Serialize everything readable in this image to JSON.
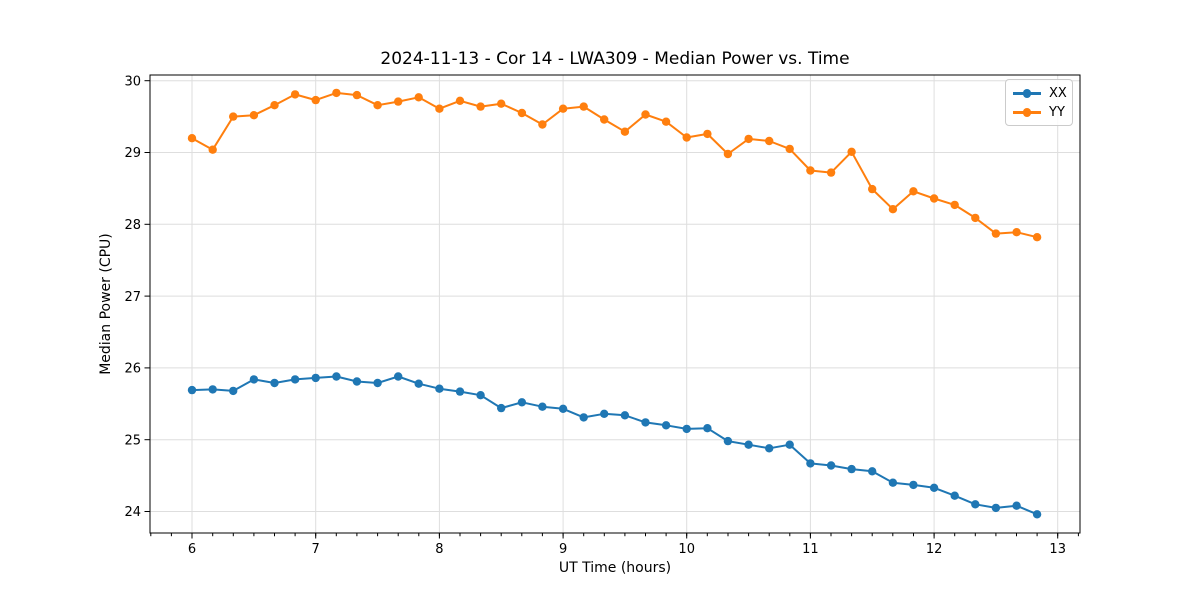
{
  "figure": {
    "title": "2024-11-13 - Cor 14 - LWA309 - Median Power vs. Time"
  },
  "chart_data": {
    "type": "line",
    "title": "2024-11-13 - Cor 14 - LWA309 - Median Power vs. Time",
    "xlabel": "UT Time (hours)",
    "ylabel": "Median Power (CPU)",
    "x": [
      6.0,
      6.167,
      6.333,
      6.5,
      6.667,
      6.833,
      7.0,
      7.167,
      7.333,
      7.5,
      7.667,
      7.833,
      8.0,
      8.167,
      8.333,
      8.5,
      8.667,
      8.833,
      9.0,
      9.167,
      9.333,
      9.5,
      9.667,
      9.833,
      10.0,
      10.167,
      10.333,
      10.5,
      10.667,
      10.833,
      11.0,
      11.167,
      11.333,
      11.5,
      11.667,
      11.833,
      12.0,
      12.167,
      12.333,
      12.5,
      12.667,
      12.833
    ],
    "series": [
      {
        "name": "XX",
        "color": "#1f77b4",
        "marker": "o",
        "values": [
          25.69,
          25.7,
          25.68,
          25.84,
          25.79,
          25.84,
          25.86,
          25.88,
          25.81,
          25.79,
          25.88,
          25.78,
          25.71,
          25.67,
          25.62,
          25.44,
          25.52,
          25.46,
          25.43,
          25.31,
          25.36,
          25.34,
          25.24,
          25.2,
          25.15,
          25.16,
          24.98,
          24.93,
          24.88,
          24.93,
          24.67,
          24.64,
          24.59,
          24.56,
          24.4,
          24.37,
          24.33,
          24.22,
          24.1,
          24.05,
          24.08,
          23.96
        ]
      },
      {
        "name": "YY",
        "color": "#ff7f0e",
        "marker": "o",
        "values": [
          29.2,
          29.04,
          29.5,
          29.52,
          29.66,
          29.81,
          29.73,
          29.83,
          29.8,
          29.66,
          29.71,
          29.77,
          29.61,
          29.72,
          29.64,
          29.68,
          29.55,
          29.39,
          29.61,
          29.64,
          29.46,
          29.29,
          29.53,
          29.43,
          29.21,
          29.26,
          28.98,
          29.19,
          29.16,
          29.05,
          28.75,
          28.72,
          29.01,
          28.49,
          28.21,
          28.46,
          28.36,
          28.27,
          28.09,
          27.87,
          27.89,
          27.82
        ]
      }
    ],
    "xlim": [
      5.66,
      13.18
    ],
    "ylim": [
      23.7,
      30.08
    ],
    "xticks": [
      6,
      7,
      8,
      9,
      10,
      11,
      12,
      13
    ],
    "yticks": [
      24,
      25,
      26,
      27,
      28,
      29,
      30
    ],
    "x_minor_step": 0.1666667,
    "grid": true,
    "legend_position": "upper right",
    "legend_labels": [
      "XX",
      "YY"
    ]
  }
}
